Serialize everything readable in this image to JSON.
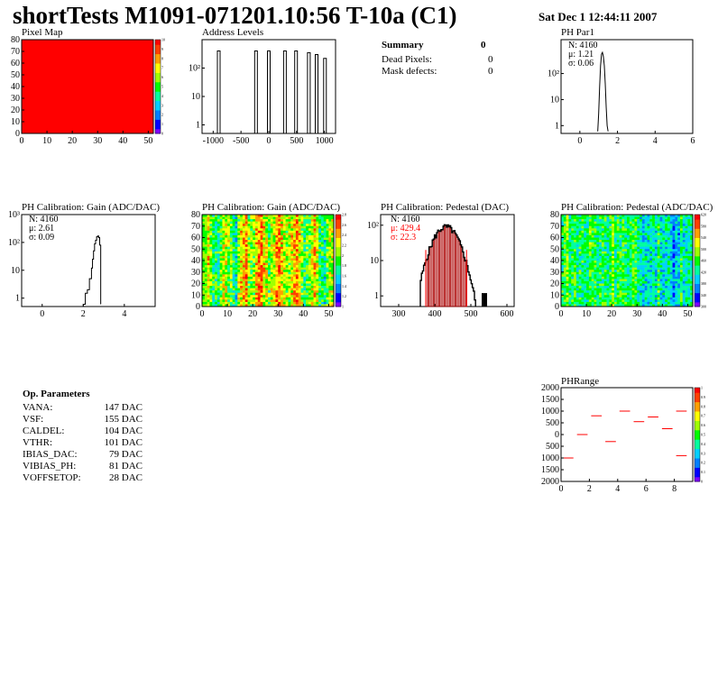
{
  "header": {
    "title": "shortTests M1091-071201.10:56 T-10a (C1)",
    "date": "Sat Dec  1 12:44:11 2007"
  },
  "summary": {
    "title": "Summary",
    "total": "0",
    "rows": [
      {
        "label": "Dead Pixels:",
        "value": "0"
      },
      {
        "label": "Mask defects:",
        "value": "0"
      }
    ]
  },
  "op_params": {
    "title": "Op. Parameters",
    "rows": [
      {
        "name": "VANA:",
        "value": "147 DAC"
      },
      {
        "name": "VSF:",
        "value": "155 DAC"
      },
      {
        "name": "CALDEL:",
        "value": "104 DAC"
      },
      {
        "name": "VTHR:",
        "value": "101 DAC"
      },
      {
        "name": "IBIAS_DAC:",
        "value": "79 DAC"
      },
      {
        "name": "VIBIAS_PH:",
        "value": "81 DAC"
      },
      {
        "name": "VOFFSETOP:",
        "value": "28 DAC"
      }
    ]
  },
  "colors": {
    "palette": [
      "#7f00ff",
      "#0000ff",
      "#0080ff",
      "#00d0ff",
      "#00ffa0",
      "#00ff00",
      "#a0ff00",
      "#ffff00",
      "#ffa000",
      "#ff4000",
      "#ff0000"
    ],
    "stat_red": "#ff0000",
    "hist_fill": "#aa0000"
  },
  "chart_data": [
    {
      "id": "pixelmap",
      "type": "heatmap",
      "title": "Pixel Map",
      "xlim": [
        0,
        52
      ],
      "ylim": [
        0,
        80
      ],
      "xticks": [
        0,
        10,
        20,
        30,
        40,
        50
      ],
      "yticks": [
        0,
        10,
        20,
        30,
        40,
        50,
        60,
        70,
        80
      ],
      "uniform_value": 10,
      "zlim": [
        0,
        10
      ],
      "zticks": [
        "0",
        "1",
        "2",
        "3",
        "4",
        "5",
        "6",
        "7",
        "8",
        "9",
        "10"
      ]
    },
    {
      "id": "address",
      "type": "bar",
      "title": "Address Levels",
      "log_y": true,
      "xlim": [
        -1200,
        1200
      ],
      "ylim": [
        0.5,
        1000
      ],
      "xticks": [
        -1000,
        -500,
        0,
        500,
        1000
      ],
      "yticks": [
        1,
        10,
        100
      ],
      "yticklabels": [
        "1",
        "10",
        "10²"
      ],
      "peaks": [
        {
          "x": -900,
          "y": 400
        },
        {
          "x": -230,
          "y": 400
        },
        {
          "x": 0,
          "y": 400
        },
        {
          "x": 290,
          "y": 400
        },
        {
          "x": 490,
          "y": 400
        },
        {
          "x": 720,
          "y": 350
        },
        {
          "x": 860,
          "y": 300
        },
        {
          "x": 1010,
          "y": 220
        }
      ]
    },
    {
      "id": "phpar1",
      "type": "line",
      "title": "PH Par1",
      "log_y": true,
      "xlim": [
        -1,
        6
      ],
      "ylim": [
        0.5,
        2000
      ],
      "xticks": [
        0,
        2,
        4,
        6
      ],
      "yticks": [
        1,
        10,
        100
      ],
      "yticklabels": [
        "1",
        "10",
        "10²"
      ],
      "stats": {
        "n": "N: 4160",
        "mean": "μ: 1.21",
        "sigma": "σ: 0.06"
      },
      "x": [
        0.95,
        1.0,
        1.05,
        1.1,
        1.15,
        1.2,
        1.25,
        1.3,
        1.35,
        1.4,
        1.45,
        1.5
      ],
      "y": [
        0.6,
        3,
        30,
        200,
        550,
        650,
        450,
        200,
        40,
        5,
        1,
        0.6
      ]
    },
    {
      "id": "gain",
      "type": "line",
      "title": "PH Calibration: Gain (ADC/DAC)",
      "log_y": true,
      "xlim": [
        -1,
        5.5
      ],
      "ylim": [
        0.5,
        1000
      ],
      "xticks": [
        0,
        2,
        4
      ],
      "yticks": [
        1,
        10,
        100,
        1000
      ],
      "yticklabels": [
        "1",
        "10",
        "10²",
        "10³"
      ],
      "stats": {
        "n": "N: 4160",
        "mean": "μ: 2.61",
        "sigma": "σ: 0.09"
      },
      "x": [
        2.0,
        2.1,
        2.2,
        2.3,
        2.4,
        2.45,
        2.5,
        2.55,
        2.6,
        2.65,
        2.7,
        2.75,
        2.8,
        2.85
      ],
      "y": [
        0.6,
        1.5,
        2,
        5,
        12,
        25,
        50,
        90,
        120,
        160,
        170,
        150,
        80,
        0.6
      ]
    },
    {
      "id": "gainmap",
      "type": "heatmap",
      "title": "PH Calibration: Gain (ADC/DAC)",
      "xlim": [
        0,
        52
      ],
      "ylim": [
        0,
        80
      ],
      "xticks": [
        0,
        10,
        20,
        30,
        40,
        50
      ],
      "yticks": [
        0,
        10,
        20,
        30,
        40,
        50,
        60,
        70,
        80
      ],
      "zlim": [
        1.0,
        2.8
      ],
      "zticks": [
        "1",
        "1.2",
        "1.4",
        "1.6",
        "1.8",
        "2",
        "2.2",
        "2.4",
        "2.6",
        "2.8"
      ]
    },
    {
      "id": "pedestal",
      "type": "bar",
      "title": "PH Calibration: Pedestal (DAC)",
      "log_y": true,
      "xlim": [
        250,
        620
      ],
      "ylim": [
        0.5,
        200
      ],
      "xticks": [
        300,
        400,
        500,
        600
      ],
      "yticks": [
        1,
        10,
        100
      ],
      "yticklabels": [
        "1",
        "10",
        "10²"
      ],
      "stats": {
        "n": "N: 4160",
        "mean": "μ: 429.4",
        "sigma": "σ: 22.3"
      },
      "cut_lines": [
        375,
        488
      ],
      "mean": 429.4,
      "sigma": 22.3,
      "peak": 90
    },
    {
      "id": "pedmap",
      "type": "heatmap",
      "title": "PH Calibration: Pedestal (ADC/DAC)",
      "xlim": [
        0,
        52
      ],
      "ylim": [
        0,
        80
      ],
      "xticks": [
        0,
        10,
        20,
        30,
        40,
        50
      ],
      "yticks": [
        0,
        10,
        20,
        30,
        40,
        50,
        60,
        70,
        80
      ],
      "zlim": [
        300,
        640
      ],
      "zticks": [
        "300",
        "340",
        "380",
        "420",
        "460",
        "500",
        "540",
        "580",
        "620"
      ]
    },
    {
      "id": "phrange",
      "type": "scatter",
      "title": "PHRange",
      "xlim": [
        0,
        9.3
      ],
      "ylim": [
        -2000,
        2000
      ],
      "xticks": [
        0,
        2,
        4,
        6,
        8
      ],
      "yticks": [
        -2000,
        -1500,
        -1000,
        -500,
        0,
        500,
        1000,
        1500,
        2000
      ],
      "yticklabels": [
        "2000",
        "1500",
        "1000",
        "500",
        "0",
        "500",
        "1000",
        "1500",
        "2000"
      ],
      "yticklabels_top": [
        "2000",
        "1500",
        "1000",
        "500",
        "0",
        "500",
        "1000",
        "1500",
        "2000"
      ],
      "segments": [
        {
          "x0": 0,
          "x1": 1,
          "y": -1000
        },
        {
          "x0": 1,
          "x1": 2,
          "y": 0
        },
        {
          "x0": 2,
          "x1": 3,
          "y": 800
        },
        {
          "x0": 3,
          "x1": 4,
          "y": -300
        },
        {
          "x0": 4,
          "x1": 5,
          "y": 1000
        },
        {
          "x0": 5,
          "x1": 6,
          "y": 550
        },
        {
          "x0": 6,
          "x1": 7,
          "y": 750
        },
        {
          "x0": 7,
          "x1": 8,
          "y": 250
        },
        {
          "x0": 8,
          "x1": 9,
          "y": 1000
        },
        {
          "x0": 8,
          "x1": 9,
          "y": -900
        }
      ],
      "zticks": [
        "0",
        "0.1",
        "0.2",
        "0.3",
        "0.4",
        "0.5",
        "0.6",
        "0.7",
        "0.8",
        "0.9",
        "1"
      ]
    }
  ]
}
